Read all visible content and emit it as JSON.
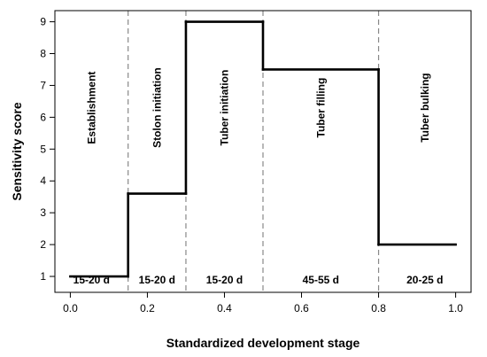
{
  "chart_data": {
    "type": "line",
    "step": true,
    "xlabel": "Standardized development stage",
    "ylabel": "Sensitivity score",
    "xlim": [
      -0.04,
      1.04
    ],
    "ylim": [
      0.5,
      9.35
    ],
    "x_ticks": [
      0.0,
      0.2,
      0.4,
      0.6,
      0.8,
      1.0
    ],
    "x_tick_labels": [
      "0.0",
      "0.2",
      "0.4",
      "0.6",
      "0.8",
      "1.0"
    ],
    "y_ticks": [
      1,
      2,
      3,
      4,
      5,
      6,
      7,
      8,
      9
    ],
    "y_tick_labels": [
      "1",
      "2",
      "3",
      "4",
      "5",
      "6",
      "7",
      "8",
      "9"
    ],
    "grid": false,
    "line_color": "#000000",
    "boundary_color": "#888888",
    "stage_boundaries": [
      0.15,
      0.3,
      0.5,
      0.8
    ],
    "segments": [
      {
        "x_start": 0.0,
        "x_end": 0.15,
        "y": 1.0
      },
      {
        "x_start": 0.15,
        "x_end": 0.3,
        "y": 3.6
      },
      {
        "x_start": 0.3,
        "x_end": 0.5,
        "y": 9.0
      },
      {
        "x_start": 0.5,
        "x_end": 0.8,
        "y": 7.5
      },
      {
        "x_start": 0.8,
        "x_end": 1.0,
        "y": 2.0
      }
    ],
    "stages": [
      {
        "name": "Establishment",
        "duration": "15-20 d",
        "x_start": -0.04,
        "x_end": 0.15
      },
      {
        "name": "Stolon initiation",
        "duration": "15-20 d",
        "x_start": 0.15,
        "x_end": 0.3
      },
      {
        "name": "Tuber initiation",
        "duration": "15-20 d",
        "x_start": 0.3,
        "x_end": 0.5
      },
      {
        "name": "Tuber filling",
        "duration": "45-55 d",
        "x_start": 0.5,
        "x_end": 0.8
      },
      {
        "name": "Tuber bulking",
        "duration": "20-25 d",
        "x_start": 0.8,
        "x_end": 1.04
      }
    ]
  }
}
